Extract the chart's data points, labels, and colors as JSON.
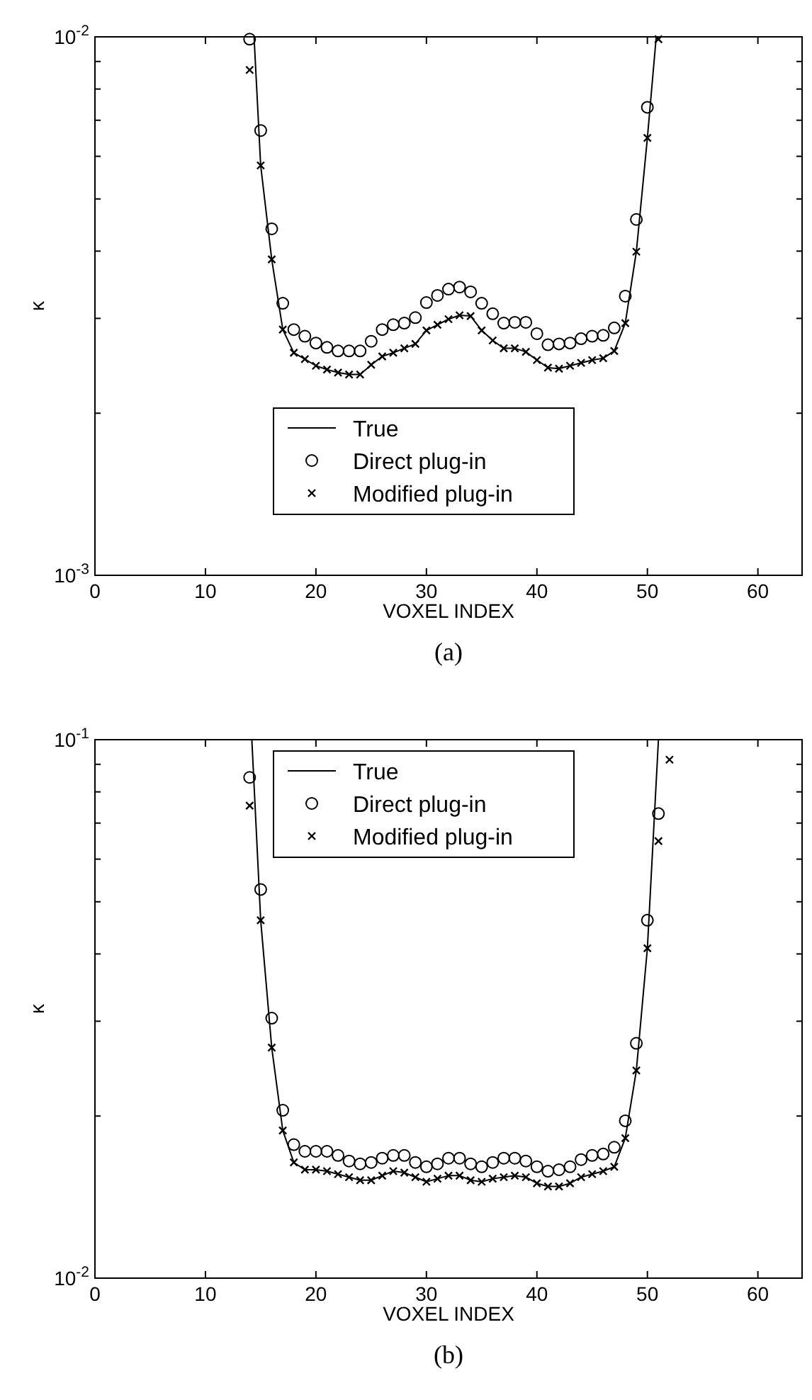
{
  "chart_data": [
    {
      "type": "line",
      "xlabel": "VOXEL INDEX",
      "ylabel": "κ",
      "annotations": [
        "(a)"
      ],
      "log": "y",
      "legend": "bottom",
      "xlim": [
        0,
        64
      ],
      "xticks": [
        0,
        10,
        20,
        30,
        40,
        50,
        60
      ],
      "ylim": [
        0.001,
        0.01
      ],
      "yticks": [
        {
          "value": 0.001,
          "label": "10$^{-3}$"
        },
        {
          "value": 0.002,
          "label": null
        },
        {
          "value": 0.003,
          "label": null
        },
        {
          "value": 0.004,
          "label": null
        },
        {
          "value": 0.005,
          "label": null
        },
        {
          "value": 0.006,
          "label": null
        },
        {
          "value": 0.007,
          "label": null
        },
        {
          "value": 0.008,
          "label": null
        },
        {
          "value": 0.009,
          "label": null
        },
        {
          "value": 0.01,
          "label": "10$^{-2}$"
        }
      ],
      "grid": false,
      "series": [
        {
          "name": "True",
          "type": "line",
          "color": "#000000",
          "marker": "none",
          "line_style": "solid",
          "x": [
            14.4,
            15,
            16,
            17,
            18,
            19,
            20,
            21,
            22,
            23,
            24,
            25,
            26,
            27,
            28,
            29,
            30,
            31,
            32,
            33,
            34,
            35,
            36,
            37,
            38,
            39,
            40,
            41,
            42,
            43,
            44,
            45,
            46,
            47,
            48,
            49,
            50,
            50.8
          ],
          "values": [
            0.01,
            0.00577,
            0.00386,
            0.00286,
            0.00259,
            0.00252,
            0.00245,
            0.00241,
            0.00238,
            0.00236,
            0.00236,
            0.00246,
            0.00255,
            0.00259,
            0.00264,
            0.00269,
            0.00285,
            0.00292,
            0.00299,
            0.00304,
            0.00303,
            0.00285,
            0.00273,
            0.00264,
            0.00264,
            0.0026,
            0.00251,
            0.00243,
            0.00242,
            0.00245,
            0.00248,
            0.00251,
            0.00253,
            0.00261,
            0.00294,
            0.00399,
            0.00649,
            0.01
          ]
        },
        {
          "name": "Direct plug-in",
          "type": "scatter",
          "color": "#000000",
          "marker": "circle",
          "x": [
            14,
            15,
            16,
            17,
            18,
            19,
            20,
            21,
            22,
            23,
            24,
            25,
            26,
            27,
            28,
            29,
            30,
            31,
            32,
            33,
            34,
            35,
            36,
            37,
            38,
            39,
            40,
            41,
            42,
            43,
            44,
            45,
            46,
            47,
            48,
            49,
            50
          ],
          "values": [
            0.0099,
            0.0067,
            0.0044,
            0.0032,
            0.00286,
            0.00278,
            0.0027,
            0.00265,
            0.00261,
            0.00261,
            0.00261,
            0.00272,
            0.00286,
            0.00292,
            0.00294,
            0.00301,
            0.00321,
            0.00331,
            0.0034,
            0.00343,
            0.00336,
            0.0032,
            0.00306,
            0.00294,
            0.00295,
            0.00295,
            0.00281,
            0.00268,
            0.00269,
            0.0027,
            0.00275,
            0.00278,
            0.00279,
            0.00288,
            0.0033,
            0.00458,
            0.0074
          ]
        },
        {
          "name": "Modified plug-in",
          "type": "scatter",
          "color": "#000000",
          "marker": "cross",
          "x": [
            14,
            15,
            16,
            17,
            18,
            19,
            20,
            21,
            22,
            23,
            24,
            25,
            26,
            27,
            28,
            29,
            30,
            31,
            32,
            33,
            34,
            35,
            36,
            37,
            38,
            39,
            40,
            41,
            42,
            43,
            44,
            45,
            46,
            47,
            48,
            49,
            50,
            51
          ],
          "values": [
            0.00868,
            0.00577,
            0.00386,
            0.00286,
            0.00259,
            0.00252,
            0.00245,
            0.00241,
            0.00238,
            0.00236,
            0.00236,
            0.00246,
            0.00255,
            0.00259,
            0.00264,
            0.00269,
            0.00285,
            0.00292,
            0.00299,
            0.00304,
            0.00303,
            0.00285,
            0.00273,
            0.00264,
            0.00264,
            0.0026,
            0.00251,
            0.00243,
            0.00242,
            0.00245,
            0.00248,
            0.00251,
            0.00253,
            0.00261,
            0.00294,
            0.00399,
            0.00649,
            0.0099
          ]
        }
      ]
    },
    {
      "type": "line",
      "xlabel": "VOXEL INDEX",
      "ylabel": "κ",
      "annotations": [
        "(b)"
      ],
      "log": "y",
      "legend": "top",
      "xlim": [
        0,
        64
      ],
      "xticks": [
        0,
        10,
        20,
        30,
        40,
        50,
        60
      ],
      "ylim": [
        0.01,
        0.1
      ],
      "yticks": [
        {
          "value": 0.01,
          "label": "10$^{-2}$"
        },
        {
          "value": 0.02,
          "label": null
        },
        {
          "value": 0.03,
          "label": null
        },
        {
          "value": 0.04,
          "label": null
        },
        {
          "value": 0.05,
          "label": null
        },
        {
          "value": 0.06,
          "label": null
        },
        {
          "value": 0.07,
          "label": null
        },
        {
          "value": 0.08,
          "label": null
        },
        {
          "value": 0.09,
          "label": null
        },
        {
          "value": 0.1,
          "label": "10$^{-1}$"
        }
      ],
      "grid": false,
      "series": [
        {
          "name": "True",
          "type": "line",
          "color": "#000000",
          "marker": "none",
          "line_style": "solid",
          "x": [
            14.2,
            15,
            16,
            17,
            18,
            19,
            20,
            21,
            22,
            23,
            24,
            25,
            26,
            27,
            28,
            29,
            30,
            31,
            32,
            33,
            34,
            35,
            36,
            37,
            38,
            39,
            40,
            41,
            42,
            43,
            44,
            45,
            46,
            47,
            48,
            49,
            50,
            51
          ],
          "values": [
            0.1,
            0.0462,
            0.0268,
            0.0188,
            0.0164,
            0.0159,
            0.0159,
            0.0158,
            0.0156,
            0.0154,
            0.0152,
            0.0152,
            0.0155,
            0.0158,
            0.0157,
            0.0154,
            0.0151,
            0.0153,
            0.0155,
            0.0155,
            0.0152,
            0.0151,
            0.0153,
            0.0154,
            0.0155,
            0.0154,
            0.015,
            0.0148,
            0.0148,
            0.015,
            0.0154,
            0.0156,
            0.0158,
            0.0161,
            0.0182,
            0.0243,
            0.041,
            0.1
          ]
        },
        {
          "name": "Direct plug-in",
          "type": "scatter",
          "color": "#000000",
          "marker": "circle",
          "x": [
            14,
            15,
            16,
            17,
            18,
            19,
            20,
            21,
            22,
            23,
            24,
            25,
            26,
            27,
            28,
            29,
            30,
            31,
            32,
            33,
            34,
            35,
            36,
            37,
            38,
            39,
            40,
            41,
            42,
            43,
            44,
            45,
            46,
            47,
            48,
            49,
            50,
            51
          ],
          "values": [
            0.0851,
            0.0527,
            0.0304,
            0.0205,
            0.0177,
            0.0172,
            0.0172,
            0.0172,
            0.0169,
            0.0165,
            0.0163,
            0.0164,
            0.0167,
            0.0169,
            0.0169,
            0.0164,
            0.0161,
            0.0163,
            0.0167,
            0.0167,
            0.0163,
            0.0161,
            0.0164,
            0.0167,
            0.0167,
            0.0165,
            0.0161,
            0.0158,
            0.0159,
            0.0161,
            0.0166,
            0.0169,
            0.017,
            0.0175,
            0.0196,
            0.0273,
            0.0462,
            0.0729
          ]
        },
        {
          "name": "Modified plug-in",
          "type": "scatter",
          "color": "#000000",
          "marker": "cross",
          "x": [
            14,
            15,
            16,
            17,
            18,
            19,
            20,
            21,
            22,
            23,
            24,
            25,
            26,
            27,
            28,
            29,
            30,
            31,
            32,
            33,
            34,
            35,
            36,
            37,
            38,
            39,
            40,
            41,
            42,
            43,
            44,
            45,
            46,
            47,
            48,
            49,
            50,
            51,
            52
          ],
          "values": [
            0.0754,
            0.0462,
            0.0268,
            0.0188,
            0.0164,
            0.0159,
            0.0159,
            0.0158,
            0.0156,
            0.0154,
            0.0152,
            0.0152,
            0.0155,
            0.0158,
            0.0157,
            0.0154,
            0.0151,
            0.0153,
            0.0155,
            0.0155,
            0.0152,
            0.0151,
            0.0153,
            0.0154,
            0.0155,
            0.0154,
            0.015,
            0.0148,
            0.0148,
            0.015,
            0.0154,
            0.0156,
            0.0158,
            0.0161,
            0.0182,
            0.0243,
            0.041,
            0.0648,
            0.0918
          ]
        }
      ]
    }
  ]
}
